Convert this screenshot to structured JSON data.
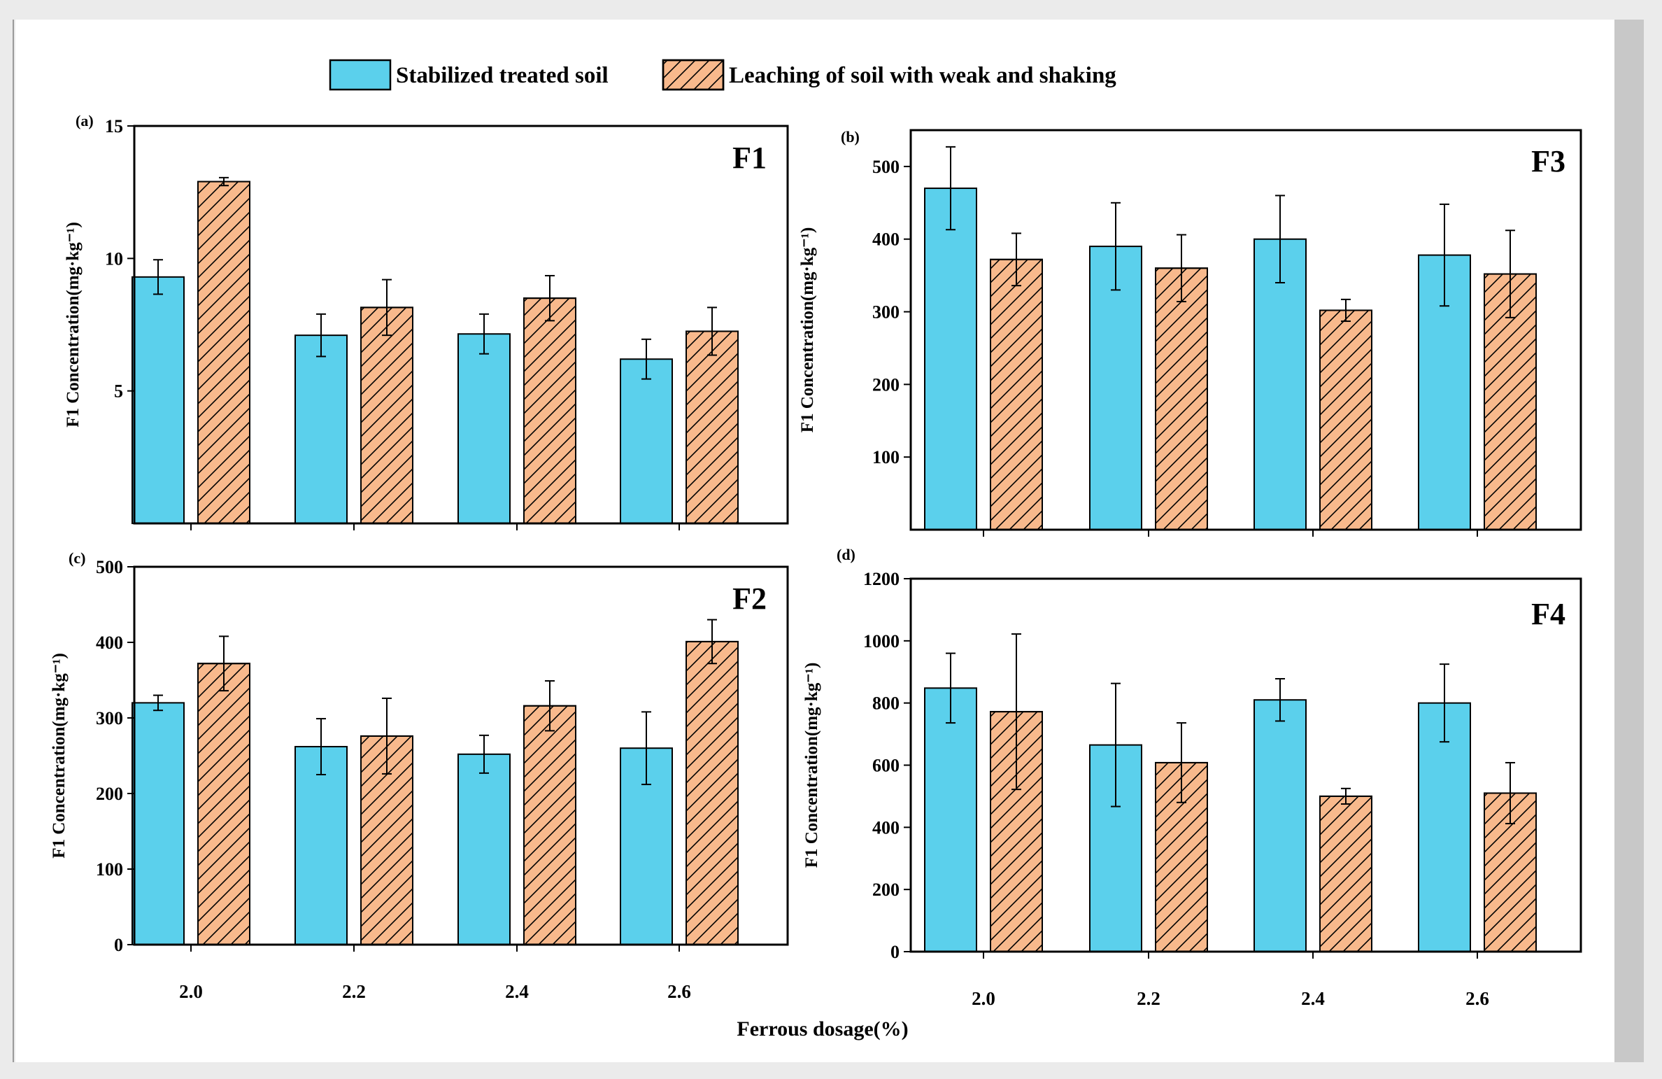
{
  "legend": {
    "series1": "Stabilized treated soil",
    "series2": "Leaching of soil with weak and shaking"
  },
  "colors": {
    "series1_fill": "#5bd0ec",
    "series2_fill": "#f8b98c",
    "hatch": "#000000",
    "axis": "#000000"
  },
  "shared_xlabel": "Ferrous dosage(%)",
  "chart_data": [
    {
      "type": "bar",
      "panel": "(a)",
      "title": "F1",
      "ylabel": "F1 Concentration(mg·kg⁻¹)",
      "categories": [
        "2.0",
        "2.2",
        "2.4",
        "2.6"
      ],
      "ylim": [
        0,
        15
      ],
      "yticks": [
        5,
        10,
        15
      ],
      "series": [
        {
          "name": "Stabilized treated soil",
          "values": [
            9.3,
            7.1,
            7.15,
            6.2
          ],
          "errors": [
            0.65,
            0.8,
            0.75,
            0.75
          ]
        },
        {
          "name": "Leaching of soil with weak and shaking",
          "values": [
            12.9,
            8.15,
            8.5,
            7.25
          ],
          "errors": [
            0.15,
            1.05,
            0.85,
            0.9
          ]
        }
      ]
    },
    {
      "type": "bar",
      "panel": "(b)",
      "title": "F3",
      "ylabel": "F1 Concentration(mg·kg⁻¹)",
      "categories": [
        "2.0",
        "2.2",
        "2.4",
        "2.6"
      ],
      "ylim": [
        0,
        550
      ],
      "yticks": [
        100,
        200,
        300,
        400,
        500
      ],
      "series": [
        {
          "name": "Stabilized treated soil",
          "values": [
            470,
            390,
            400,
            378
          ],
          "errors": [
            57,
            60,
            60,
            70
          ]
        },
        {
          "name": "Leaching of soil with weak and shaking",
          "values": [
            372,
            360,
            302,
            352
          ],
          "errors": [
            36,
            46,
            15,
            60
          ]
        }
      ]
    },
    {
      "type": "bar",
      "panel": "(c)",
      "title": "F2",
      "ylabel": "F1 Concentration(mg·kg⁻¹)",
      "categories": [
        "2.0",
        "2.2",
        "2.4",
        "2.6"
      ],
      "ylim": [
        0,
        500
      ],
      "yticks": [
        0,
        100,
        200,
        300,
        400,
        500
      ],
      "series": [
        {
          "name": "Stabilized treated soil",
          "values": [
            320,
            262,
            252,
            260
          ],
          "errors": [
            10,
            37,
            25,
            48
          ]
        },
        {
          "name": "Leaching of soil with weak and shaking",
          "values": [
            372,
            276,
            316,
            401
          ],
          "errors": [
            36,
            50,
            33,
            29
          ]
        }
      ]
    },
    {
      "type": "bar",
      "panel": "(d)",
      "title": "F4",
      "ylabel": "F1 Concentration(mg·kg⁻¹)",
      "categories": [
        "2.0",
        "2.2",
        "2.4",
        "2.6"
      ],
      "ylim": [
        0,
        1200
      ],
      "yticks": [
        0,
        200,
        400,
        600,
        800,
        1000,
        1200
      ],
      "series": [
        {
          "name": "Stabilized treated soil",
          "values": [
            848,
            665,
            810,
            800
          ],
          "errors": [
            112,
            198,
            68,
            125
          ]
        },
        {
          "name": "Leaching of soil with weak and shaking",
          "values": [
            772,
            608,
            500,
            510
          ],
          "errors": [
            250,
            128,
            25,
            98
          ]
        }
      ]
    }
  ]
}
